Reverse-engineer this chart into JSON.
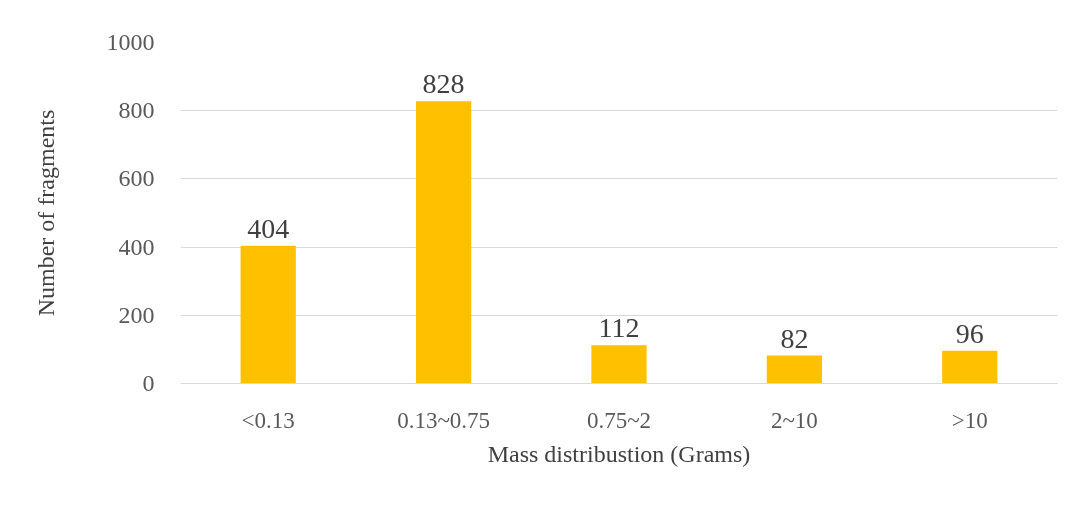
{
  "chart_data": {
    "type": "bar",
    "xlabel": "Mass distribustion (Grams)",
    "ylabel": "Number of fragments",
    "categories": [
      "<0.13",
      "0.13~0.75",
      "0.75~2",
      "2~10",
      ">10"
    ],
    "values": [
      404,
      828,
      112,
      82,
      96
    ],
    "color": "#ffc000",
    "ylim": [
      0,
      1000
    ],
    "yticks": [
      0,
      200,
      400,
      600,
      800,
      1000
    ],
    "grid": "y",
    "data_labels": true
  }
}
